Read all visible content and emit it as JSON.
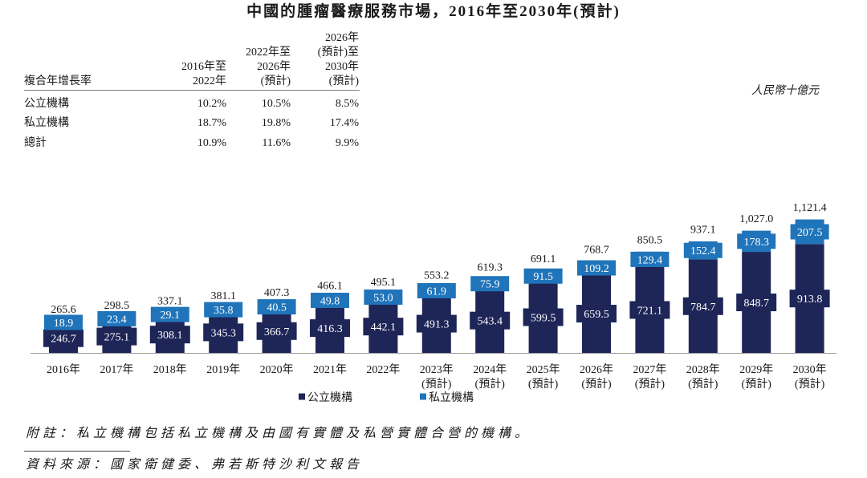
{
  "title": "中國的腫瘤醫療服務市場，2016年至2030年(預計)",
  "cagr_table": {
    "label": "複合年增長率",
    "periods": [
      {
        "lines": [
          "2016年至",
          "2022年"
        ]
      },
      {
        "lines": [
          "2022年至",
          "2026年",
          "(預計)"
        ]
      },
      {
        "lines": [
          "2026年",
          "(預計)至",
          "2030年",
          "(預計)"
        ]
      }
    ],
    "rows": [
      {
        "label": "公立機構",
        "values": [
          "10.2%",
          "10.5%",
          "8.5%"
        ]
      },
      {
        "label": "私立機構",
        "values": [
          "18.7%",
          "19.8%",
          "17.4%"
        ]
      },
      {
        "label": "總計",
        "values": [
          "10.9%",
          "11.6%",
          "9.9%"
        ]
      }
    ]
  },
  "chart_data": {
    "type": "bar",
    "stacked": true,
    "unit": "人民幣十億元",
    "categories": [
      "2016年",
      "2017年",
      "2018年",
      "2019年",
      "2020年",
      "2021年",
      "2022年",
      "2023年(預計)",
      "2024年(預計)",
      "2025年(預計)",
      "2026年(預計)",
      "2027年(預計)",
      "2028年(預計)",
      "2029年(預計)",
      "2030年(預計)"
    ],
    "series": [
      {
        "name": "公立機構",
        "color": "#1e2557",
        "values": [
          246.7,
          275.1,
          308.1,
          345.3,
          366.7,
          416.3,
          442.1,
          491.3,
          543.4,
          599.5,
          659.5,
          721.1,
          784.7,
          848.7,
          913.8
        ]
      },
      {
        "name": "私立機構",
        "color": "#1f74ba",
        "values": [
          18.9,
          23.4,
          29.1,
          35.8,
          40.5,
          49.8,
          53.0,
          61.9,
          75.9,
          91.5,
          109.2,
          129.4,
          152.4,
          178.3,
          207.5
        ]
      }
    ],
    "totals": [
      265.6,
      298.5,
      337.1,
      381.1,
      407.3,
      466.1,
      495.1,
      553.2,
      619.3,
      691.1,
      768.7,
      850.5,
      937.1,
      1027.0,
      1121.4
    ],
    "grid": false,
    "legend_position": "bottom"
  },
  "footnotes": {
    "note": "附註：私立機構包括私立機構及由國有實體及私營實體合營的機構。",
    "source": "資料來源：國家衛健委、弗若斯特沙利文報告"
  }
}
